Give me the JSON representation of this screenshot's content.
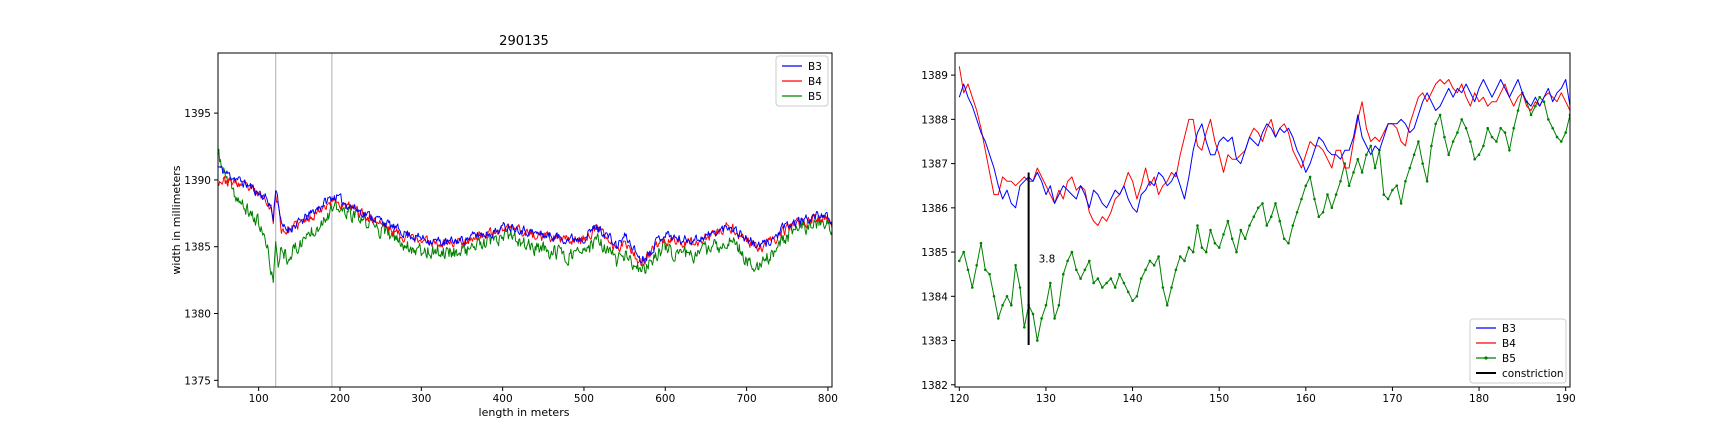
{
  "colors": {
    "B3": "#0000ff",
    "B4": "#ff0000",
    "B5": "#008000",
    "constriction": "#000000",
    "guide_lines": "#b0b0b0"
  },
  "chart_data": [
    {
      "type": "line",
      "title": "290135",
      "xlabel": "length in meters",
      "ylabel": "width in millimeters",
      "xlim": [
        50,
        805
      ],
      "ylim": [
        1374.5,
        1399.5
      ],
      "xticks": [
        100,
        200,
        300,
        400,
        500,
        600,
        700,
        800
      ],
      "yticks": [
        1375,
        1380,
        1385,
        1390,
        1395
      ],
      "grid": false,
      "legend_position": "top-right",
      "vertical_lines": [
        121,
        190
      ],
      "x_sampled_every": 1,
      "anchors_x": [
        50,
        60,
        70,
        80,
        90,
        100,
        110,
        115,
        118,
        121,
        124,
        128,
        135,
        145,
        155,
        165,
        175,
        185,
        195,
        205,
        215,
        230,
        250,
        270,
        290,
        310,
        330,
        350,
        370,
        390,
        405,
        420,
        440,
        460,
        480,
        500,
        515,
        530,
        540,
        550,
        560,
        570,
        580,
        590,
        600,
        610,
        620,
        640,
        660,
        680,
        700,
        715,
        725,
        735,
        745,
        760,
        780,
        795,
        805
      ],
      "series": [
        {
          "name": "B3",
          "anchors_y": [
            1391.0,
            1390.5,
            1390.2,
            1389.8,
            1389.5,
            1389.0,
            1388.6,
            1388.0,
            1387.0,
            1389.5,
            1388.5,
            1386.5,
            1386.3,
            1386.6,
            1387.0,
            1387.5,
            1388.0,
            1388.5,
            1388.8,
            1388.3,
            1388.0,
            1387.5,
            1387.0,
            1386.3,
            1385.8,
            1385.5,
            1385.3,
            1385.5,
            1385.9,
            1386.1,
            1386.6,
            1386.4,
            1386.0,
            1385.8,
            1385.6,
            1385.7,
            1386.5,
            1385.8,
            1385.0,
            1385.8,
            1385.0,
            1384.0,
            1384.5,
            1385.5,
            1386.0,
            1385.7,
            1385.5,
            1385.6,
            1386.0,
            1386.6,
            1385.6,
            1385.0,
            1385.3,
            1385.7,
            1386.4,
            1386.8,
            1387.2,
            1387.5,
            1386.5
          ],
          "noise": 0.55
        },
        {
          "name": "B4",
          "anchors_y": [
            1390.0,
            1389.9,
            1389.8,
            1389.6,
            1389.3,
            1388.9,
            1388.6,
            1387.8,
            1387.0,
            1389.0,
            1388.0,
            1386.3,
            1386.2,
            1386.5,
            1386.9,
            1387.3,
            1387.8,
            1388.3,
            1388.5,
            1388.0,
            1387.9,
            1387.4,
            1386.8,
            1386.0,
            1385.6,
            1385.4,
            1385.3,
            1385.4,
            1385.8,
            1386.0,
            1386.5,
            1386.3,
            1385.8,
            1385.6,
            1385.5,
            1385.6,
            1386.4,
            1385.5,
            1384.8,
            1385.5,
            1384.6,
            1383.8,
            1384.3,
            1385.2,
            1385.6,
            1385.4,
            1385.3,
            1385.4,
            1385.9,
            1386.5,
            1385.5,
            1384.8,
            1385.2,
            1385.6,
            1386.2,
            1386.6,
            1387.0,
            1387.3,
            1386.5
          ],
          "noise": 0.6
        },
        {
          "name": "B5",
          "anchors_y": [
            1392.0,
            1390.0,
            1389.0,
            1388.0,
            1387.5,
            1386.8,
            1385.0,
            1383.5,
            1382.5,
            1384.8,
            1383.8,
            1385.0,
            1384.3,
            1384.8,
            1385.5,
            1386.2,
            1386.8,
            1387.5,
            1387.8,
            1387.6,
            1387.4,
            1386.8,
            1386.3,
            1385.5,
            1384.9,
            1384.7,
            1384.6,
            1384.7,
            1385.1,
            1385.3,
            1385.8,
            1385.4,
            1384.9,
            1384.6,
            1384.4,
            1384.5,
            1385.5,
            1384.6,
            1383.9,
            1384.5,
            1383.6,
            1383.0,
            1383.6,
            1384.6,
            1385.0,
            1384.6,
            1384.4,
            1384.5,
            1384.9,
            1385.5,
            1384.2,
            1383.2,
            1384.0,
            1384.8,
            1385.6,
            1386.2,
            1386.7,
            1387.0,
            1386.0
          ],
          "noise": 0.9
        }
      ]
    },
    {
      "type": "line",
      "title": "",
      "xlabel": "",
      "ylabel": "",
      "xlim": [
        119.5,
        190.5
      ],
      "ylim": [
        1381.95,
        1389.5
      ],
      "xticks": [
        120,
        130,
        140,
        150,
        160,
        170,
        180,
        190
      ],
      "yticks": [
        1382,
        1383,
        1384,
        1385,
        1386,
        1387,
        1388,
        1389
      ],
      "grid": false,
      "legend_position": "bottom-right",
      "x_sampled_every": 0.5,
      "series": [
        {
          "name": "B3",
          "values": [
            1388.5,
            1388.8,
            1388.5,
            1388.3,
            1388.0,
            1387.7,
            1387.5,
            1387.2,
            1386.9,
            1386.5,
            1386.2,
            1386.4,
            1386.1,
            1386.0,
            1386.5,
            1386.6,
            1386.7,
            1386.6,
            1386.8,
            1386.6,
            1386.3,
            1386.5,
            1386.1,
            1386.3,
            1386.5,
            1386.4,
            1386.3,
            1386.2,
            1386.5,
            1386.3,
            1386.0,
            1386.4,
            1386.3,
            1386.1,
            1386.0,
            1386.2,
            1386.4,
            1386.3,
            1386.5,
            1386.2,
            1386.0,
            1385.9,
            1386.3,
            1386.4,
            1386.6,
            1386.5,
            1386.8,
            1386.7,
            1386.5,
            1386.6,
            1386.8,
            1386.5,
            1386.2,
            1386.7,
            1387.3,
            1387.7,
            1387.9,
            1387.5,
            1387.2,
            1387.2,
            1387.5,
            1387.6,
            1387.5,
            1387.6,
            1387.1,
            1387.0,
            1387.3,
            1387.6,
            1387.5,
            1387.4,
            1387.7,
            1387.9,
            1387.8,
            1387.6,
            1387.8,
            1387.7,
            1387.8,
            1387.6,
            1387.3,
            1387.1,
            1386.8,
            1387.0,
            1387.3,
            1387.6,
            1387.5,
            1387.3,
            1387.2,
            1387.2,
            1387.1,
            1387.3,
            1387.3,
            1387.6,
            1388.1,
            1387.6,
            1387.4,
            1387.2,
            1387.4,
            1387.3,
            1387.6,
            1387.9,
            1387.9,
            1387.9,
            1388.0,
            1387.9,
            1387.7,
            1387.8,
            1388.1,
            1388.4,
            1388.6,
            1388.4,
            1388.2,
            1388.3,
            1388.5,
            1388.7,
            1388.5,
            1388.7,
            1388.6,
            1388.8,
            1388.6,
            1388.4,
            1388.7,
            1388.9,
            1388.7,
            1388.5,
            1388.7,
            1388.9,
            1388.7,
            1388.5,
            1388.7,
            1388.9,
            1388.6,
            1388.4,
            1388.3,
            1388.5,
            1388.3,
            1388.5,
            1388.7,
            1388.4,
            1388.6,
            1388.7,
            1388.9,
            1388.3,
            1388.0
          ]
        },
        {
          "name": "B4",
          "values": [
            1389.2,
            1388.6,
            1388.8,
            1388.5,
            1388.2,
            1387.8,
            1387.3,
            1386.8,
            1386.3,
            1386.3,
            1386.7,
            1386.6,
            1386.6,
            1386.5,
            1386.6,
            1386.7,
            1386.6,
            1386.6,
            1386.9,
            1386.7,
            1386.5,
            1386.3,
            1386.1,
            1386.4,
            1386.2,
            1386.6,
            1386.7,
            1386.4,
            1386.5,
            1386.4,
            1385.9,
            1385.7,
            1385.6,
            1385.8,
            1385.7,
            1385.9,
            1386.2,
            1386.3,
            1386.5,
            1386.8,
            1386.6,
            1386.2,
            1386.5,
            1386.9,
            1386.5,
            1386.7,
            1386.3,
            1386.5,
            1386.6,
            1386.8,
            1386.7,
            1387.2,
            1387.6,
            1388.0,
            1388.0,
            1387.4,
            1387.3,
            1387.7,
            1388.0,
            1387.5,
            1387.2,
            1386.8,
            1387.2,
            1387.1,
            1387.1,
            1387.2,
            1387.3,
            1387.6,
            1387.8,
            1387.7,
            1387.5,
            1387.8,
            1388.0,
            1387.6,
            1387.8,
            1387.9,
            1387.7,
            1387.3,
            1387.1,
            1386.9,
            1387.2,
            1387.5,
            1387.4,
            1387.4,
            1387.3,
            1387.1,
            1386.9,
            1387.3,
            1387.3,
            1386.9,
            1386.9,
            1387.5,
            1388.0,
            1388.4,
            1387.8,
            1387.5,
            1387.6,
            1387.5,
            1387.7,
            1387.9,
            1387.9,
            1387.8,
            1387.5,
            1387.4,
            1387.9,
            1388.2,
            1388.5,
            1388.6,
            1388.4,
            1388.6,
            1388.8,
            1388.9,
            1388.8,
            1388.9,
            1388.7,
            1388.6,
            1388.8,
            1388.5,
            1388.3,
            1388.6,
            1388.4,
            1388.5,
            1388.3,
            1388.4,
            1388.4,
            1388.6,
            1388.8,
            1388.5,
            1388.3,
            1388.5,
            1388.6,
            1388.3,
            1388.2,
            1388.4,
            1388.3,
            1388.5,
            1388.6,
            1388.5,
            1388.4,
            1388.6,
            1388.4,
            1388.2,
            1388.0
          ]
        },
        {
          "name": "B5",
          "values": [
            1384.8,
            1385.0,
            1384.6,
            1384.2,
            1384.7,
            1385.2,
            1384.6,
            1384.5,
            1384.0,
            1383.5,
            1383.8,
            1384.0,
            1383.8,
            1384.7,
            1384.2,
            1383.3,
            1383.8,
            1383.6,
            1383.0,
            1383.5,
            1383.8,
            1384.3,
            1383.5,
            1383.8,
            1384.5,
            1384.8,
            1385.0,
            1384.6,
            1384.4,
            1384.6,
            1384.8,
            1384.3,
            1384.4,
            1384.2,
            1384.3,
            1384.4,
            1384.2,
            1384.5,
            1384.3,
            1384.1,
            1383.9,
            1384.0,
            1384.4,
            1384.6,
            1384.8,
            1384.7,
            1384.9,
            1384.2,
            1383.8,
            1384.2,
            1384.6,
            1384.9,
            1384.8,
            1385.1,
            1385.0,
            1385.6,
            1385.1,
            1385.0,
            1385.5,
            1385.2,
            1385.1,
            1385.4,
            1385.7,
            1385.3,
            1385.0,
            1385.5,
            1385.3,
            1385.6,
            1385.8,
            1386.0,
            1386.1,
            1385.6,
            1385.8,
            1386.1,
            1385.7,
            1385.3,
            1385.2,
            1385.6,
            1385.9,
            1386.2,
            1386.5,
            1386.7,
            1386.2,
            1385.8,
            1385.9,
            1386.3,
            1386.0,
            1386.3,
            1386.6,
            1387.0,
            1386.5,
            1386.8,
            1387.1,
            1386.8,
            1387.2,
            1387.4,
            1386.9,
            1387.3,
            1386.3,
            1386.2,
            1386.4,
            1386.5,
            1386.1,
            1386.6,
            1386.9,
            1387.2,
            1387.5,
            1387.0,
            1386.6,
            1387.4,
            1387.9,
            1388.1,
            1387.6,
            1387.2,
            1387.5,
            1387.7,
            1388.0,
            1387.8,
            1387.5,
            1387.1,
            1387.2,
            1387.4,
            1387.8,
            1387.6,
            1387.5,
            1387.8,
            1387.7,
            1387.3,
            1387.8,
            1388.2,
            1388.6,
            1388.4,
            1388.1,
            1388.3,
            1388.5,
            1388.4,
            1388.0,
            1387.8,
            1387.6,
            1387.5,
            1387.7,
            1388.1,
            1388.0
          ]
        }
      ],
      "constriction": {
        "name": "constriction",
        "x": 128,
        "y_range": [
          1382.9,
          1386.8
        ],
        "label": "3.8"
      }
    }
  ]
}
